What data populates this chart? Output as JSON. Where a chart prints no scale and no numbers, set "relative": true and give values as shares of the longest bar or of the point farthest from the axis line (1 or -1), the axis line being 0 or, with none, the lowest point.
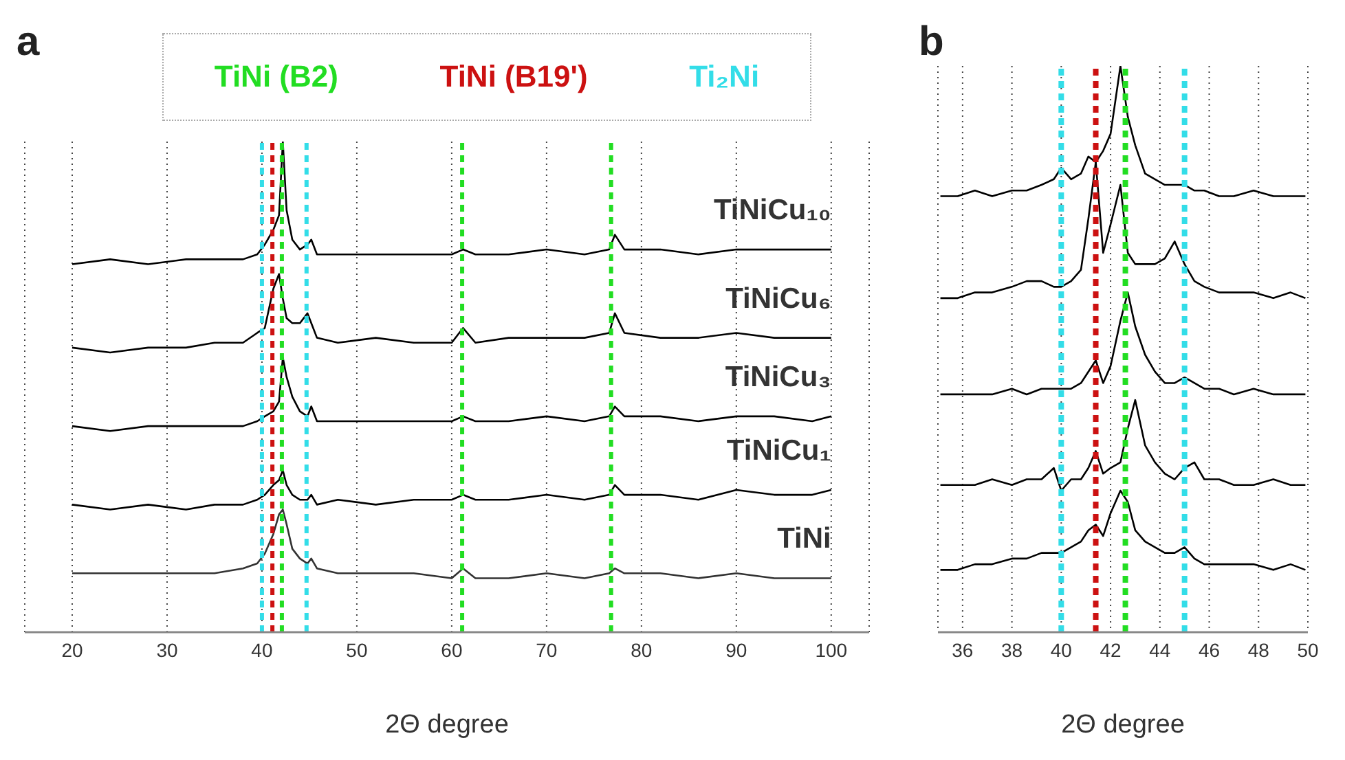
{
  "chart_data": [
    {
      "type": "line",
      "title": "a",
      "xlabel": "2Θ degree",
      "relative": true,
      "grid": "x",
      "tick_labels": "x",
      "xlim": [
        15,
        104
      ],
      "xticks": [
        20,
        30,
        40,
        50,
        60,
        70,
        80,
        90,
        100
      ],
      "x": [
        20,
        24,
        28,
        32,
        35,
        38,
        39.5,
        40.3,
        41.2,
        41.8,
        42.2,
        42.6,
        43.2,
        44,
        44.8,
        45.2,
        45.8,
        48,
        52,
        56,
        60,
        61.2,
        62.5,
        66,
        70,
        74,
        76.6,
        77.2,
        78.2,
        82,
        86,
        90,
        94,
        98,
        100
      ],
      "series": [
        {
          "name": "TiNiCu₁₀",
          "color": "#000000",
          "values": [
            0.75,
            0.76,
            0.75,
            0.76,
            0.76,
            0.76,
            0.77,
            0.79,
            0.82,
            0.85,
            1,
            0.86,
            0.8,
            0.78,
            0.79,
            0.8,
            0.77,
            0.77,
            0.77,
            0.77,
            0.77,
            0.78,
            0.77,
            0.77,
            0.78,
            0.77,
            0.78,
            0.81,
            0.78,
            0.78,
            0.77,
            0.78,
            0.78,
            0.78,
            0.78
          ]
        },
        {
          "name": "TiNiCu₆",
          "color": "#000000",
          "values": [
            0.58,
            0.57,
            0.58,
            0.58,
            0.59,
            0.59,
            0.61,
            0.62,
            0.7,
            0.73,
            0.68,
            0.64,
            0.63,
            0.63,
            0.65,
            0.63,
            0.6,
            0.59,
            0.6,
            0.59,
            0.59,
            0.62,
            0.59,
            0.6,
            0.6,
            0.6,
            0.61,
            0.65,
            0.61,
            0.6,
            0.6,
            0.61,
            0.6,
            0.6,
            0.6
          ]
        },
        {
          "name": "TiNiCu₃",
          "color": "#000000",
          "values": [
            0.42,
            0.41,
            0.42,
            0.42,
            0.42,
            0.42,
            0.43,
            0.44,
            0.45,
            0.47,
            0.56,
            0.52,
            0.48,
            0.45,
            0.44,
            0.46,
            0.43,
            0.43,
            0.43,
            0.43,
            0.43,
            0.44,
            0.43,
            0.43,
            0.44,
            0.43,
            0.44,
            0.46,
            0.44,
            0.44,
            0.43,
            0.44,
            0.44,
            0.43,
            0.44
          ]
        },
        {
          "name": "TiNiCu₁",
          "color": "#000000",
          "values": [
            0.26,
            0.25,
            0.26,
            0.25,
            0.26,
            0.26,
            0.27,
            0.28,
            0.3,
            0.31,
            0.33,
            0.3,
            0.28,
            0.27,
            0.27,
            0.28,
            0.26,
            0.27,
            0.26,
            0.27,
            0.27,
            0.28,
            0.27,
            0.27,
            0.28,
            0.27,
            0.28,
            0.3,
            0.28,
            0.28,
            0.27,
            0.29,
            0.28,
            0.28,
            0.29
          ]
        },
        {
          "name": "TiNi",
          "color": "#333333",
          "values": [
            0.12,
            0.12,
            0.12,
            0.12,
            0.12,
            0.13,
            0.14,
            0.16,
            0.2,
            0.24,
            0.25,
            0.22,
            0.17,
            0.15,
            0.14,
            0.15,
            0.13,
            0.12,
            0.12,
            0.12,
            0.11,
            0.13,
            0.11,
            0.11,
            0.12,
            0.11,
            0.12,
            0.13,
            0.12,
            0.12,
            0.11,
            0.12,
            0.11,
            0.11,
            0.11
          ]
        }
      ],
      "ref_lines": [
        {
          "axis": "x",
          "value": 42.1,
          "label": "TiNi (B2)",
          "color": "#22dd22",
          "line_style": "dashed"
        },
        {
          "axis": "x",
          "value": 41.1,
          "label": "TiNi (B19')",
          "color": "#cc1111",
          "line_style": "dashed"
        },
        {
          "axis": "x",
          "value": 40,
          "label": "Ti₂Ni",
          "color": "#33dde8",
          "line_style": "dashed"
        },
        {
          "axis": "x",
          "value": 44.7,
          "color": "#33dde8",
          "line_style": "dashed"
        },
        {
          "axis": "x",
          "value": 61.1,
          "color": "#22dd22",
          "line_style": "dashed"
        },
        {
          "axis": "x",
          "value": 76.8,
          "color": "#22dd22",
          "line_style": "dashed"
        }
      ]
    },
    {
      "type": "line",
      "title": "b",
      "xlabel": "2Θ degree",
      "relative": true,
      "grid": "x",
      "tick_labels": "x",
      "xlim": [
        35,
        50
      ],
      "xticks": [
        36,
        38,
        40,
        42,
        44,
        46,
        48,
        50
      ],
      "x": [
        35.1,
        35.8,
        36.5,
        37.2,
        38,
        38.6,
        39.2,
        39.7,
        40,
        40.4,
        40.8,
        41.1,
        41.4,
        41.7,
        42,
        42.4,
        42.7,
        43,
        43.4,
        43.8,
        44.2,
        44.6,
        45,
        45.4,
        45.8,
        46.4,
        47,
        47.8,
        48.6,
        49.3,
        49.9
      ],
      "series": [
        {
          "color": "#000000",
          "values": [
            0.77,
            0.77,
            0.78,
            0.77,
            0.78,
            0.78,
            0.79,
            0.8,
            0.82,
            0.8,
            0.81,
            0.84,
            0.83,
            0.85,
            0.88,
            1,
            0.91,
            0.86,
            0.81,
            0.8,
            0.79,
            0.79,
            0.79,
            0.78,
            0.78,
            0.77,
            0.77,
            0.78,
            0.77,
            0.77,
            0.77
          ]
        },
        {
          "color": "#000000",
          "values": [
            0.59,
            0.59,
            0.6,
            0.6,
            0.61,
            0.62,
            0.62,
            0.61,
            0.61,
            0.62,
            0.64,
            0.73,
            0.83,
            0.67,
            0.72,
            0.79,
            0.67,
            0.65,
            0.65,
            0.65,
            0.66,
            0.69,
            0.65,
            0.62,
            0.61,
            0.6,
            0.6,
            0.6,
            0.59,
            0.6,
            0.59
          ]
        },
        {
          "color": "#000000",
          "values": [
            0.42,
            0.42,
            0.42,
            0.42,
            0.43,
            0.42,
            0.43,
            0.43,
            0.43,
            0.43,
            0.44,
            0.46,
            0.48,
            0.44,
            0.47,
            0.55,
            0.6,
            0.54,
            0.49,
            0.46,
            0.44,
            0.44,
            0.45,
            0.44,
            0.43,
            0.43,
            0.42,
            0.43,
            0.42,
            0.42,
            0.42
          ]
        },
        {
          "color": "#000000",
          "values": [
            0.26,
            0.26,
            0.26,
            0.27,
            0.26,
            0.27,
            0.27,
            0.29,
            0.25,
            0.27,
            0.27,
            0.29,
            0.32,
            0.28,
            0.29,
            0.3,
            0.36,
            0.41,
            0.33,
            0.3,
            0.28,
            0.27,
            0.29,
            0.3,
            0.27,
            0.27,
            0.26,
            0.26,
            0.27,
            0.26,
            0.26
          ]
        },
        {
          "color": "#000000",
          "values": [
            0.11,
            0.11,
            0.12,
            0.12,
            0.13,
            0.13,
            0.14,
            0.14,
            0.14,
            0.15,
            0.16,
            0.18,
            0.19,
            0.17,
            0.21,
            0.25,
            0.23,
            0.18,
            0.16,
            0.15,
            0.14,
            0.14,
            0.15,
            0.13,
            0.12,
            0.12,
            0.12,
            0.12,
            0.11,
            0.12,
            0.11
          ]
        }
      ],
      "ref_lines": [
        {
          "axis": "x",
          "value": 40,
          "color": "#33dde8",
          "line_style": "dashed"
        },
        {
          "axis": "x",
          "value": 41.4,
          "color": "#cc1111",
          "line_style": "dashed"
        },
        {
          "axis": "x",
          "value": 42.6,
          "color": "#22dd22",
          "line_style": "dashed"
        },
        {
          "axis": "x",
          "value": 45,
          "color": "#33dde8",
          "line_style": "dashed"
        }
      ]
    }
  ]
}
